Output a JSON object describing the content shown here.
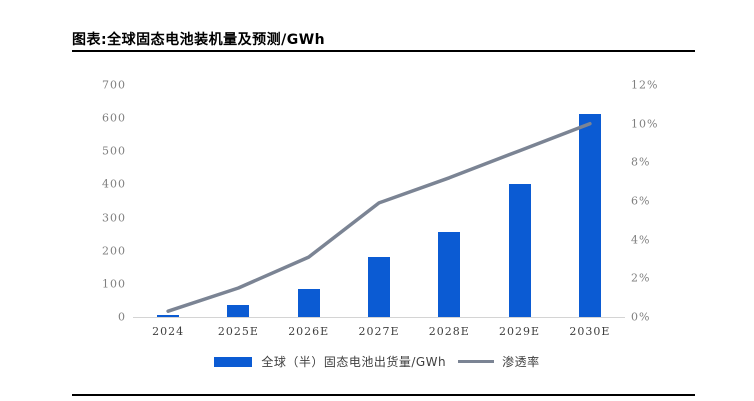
{
  "figure": {
    "title": "图表:全球固态电池装机量及预测/GWh"
  },
  "chart_data": {
    "type": "bar",
    "combo": "bar+line dual-axis",
    "title": "图表:全球固态电池装机量及预测/GWh",
    "categories": [
      "2024",
      "2025E",
      "2026E",
      "2027E",
      "2028E",
      "2029E",
      "2030E"
    ],
    "series": [
      {
        "name": "全球（半）固态电池出货量/GWh",
        "type": "bar",
        "axis": "left",
        "unit": "GWh",
        "color": "#0b5bd3",
        "values": [
          5,
          35,
          85,
          180,
          255,
          400,
          612
        ]
      },
      {
        "name": "渗透率",
        "type": "line",
        "axis": "right",
        "unit": "%",
        "color": "#7b8494",
        "values": [
          0.3,
          1.5,
          3.1,
          5.9,
          7.2,
          8.6,
          10.0
        ]
      }
    ],
    "left_axis": {
      "min": 0,
      "max": 700,
      "ticks": [
        0,
        100,
        200,
        300,
        400,
        500,
        600,
        700
      ]
    },
    "right_axis": {
      "min": 0,
      "max": 12,
      "ticks": [
        0,
        2,
        4,
        6,
        8,
        10,
        12
      ],
      "tick_suffix": "%"
    },
    "grid": false,
    "legend_position": "bottom",
    "plot_background": "#ffffff"
  },
  "colors": {
    "bar": "#0b5bd3",
    "line": "#7b8494",
    "axis_label": "#7f7f7f",
    "x_label": "#3f3f3f",
    "rule": "#000000",
    "axis_line": "#d4d4d4"
  }
}
